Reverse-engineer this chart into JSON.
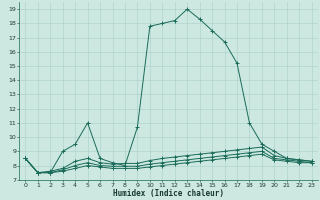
{
  "xlabel": "Humidex (Indice chaleur)",
  "xlim": [
    -0.5,
    23.5
  ],
  "ylim": [
    7,
    19.5
  ],
  "yticks": [
    7,
    8,
    9,
    10,
    11,
    12,
    13,
    14,
    15,
    16,
    17,
    18,
    19
  ],
  "xticks": [
    0,
    1,
    2,
    3,
    4,
    5,
    6,
    7,
    8,
    9,
    10,
    11,
    12,
    13,
    14,
    15,
    16,
    17,
    18,
    19,
    20,
    21,
    22,
    23
  ],
  "bg_color": "#cce8e0",
  "grid_color": "#aacfc8",
  "line_color": "#1a6b5a",
  "series": [
    {
      "x": [
        0,
        1,
        2,
        3,
        4,
        5,
        6,
        7,
        8,
        9,
        10,
        11,
        12,
        13,
        14,
        15,
        16,
        17,
        18,
        19,
        20,
        21,
        22,
        23
      ],
      "y": [
        8.5,
        7.5,
        7.5,
        9.0,
        9.5,
        11.0,
        8.5,
        8.2,
        8.0,
        10.7,
        17.8,
        18.0,
        18.2,
        19.0,
        18.3,
        17.5,
        16.7,
        15.2,
        11.0,
        9.5,
        9.0,
        8.5,
        8.4,
        8.3
      ]
    },
    {
      "x": [
        0,
        1,
        2,
        3,
        4,
        5,
        6,
        7,
        8,
        9,
        10,
        11,
        12,
        13,
        14,
        15,
        16,
        17,
        18,
        19,
        20,
        21,
        22,
        23
      ],
      "y": [
        8.5,
        7.5,
        7.6,
        7.8,
        8.3,
        8.5,
        8.2,
        8.1,
        8.15,
        8.15,
        8.35,
        8.5,
        8.6,
        8.7,
        8.8,
        8.9,
        9.0,
        9.1,
        9.2,
        9.3,
        8.7,
        8.5,
        8.4,
        8.3
      ]
    },
    {
      "x": [
        0,
        1,
        2,
        3,
        4,
        5,
        6,
        7,
        8,
        9,
        10,
        11,
        12,
        13,
        14,
        15,
        16,
        17,
        18,
        19,
        20,
        21,
        22,
        23
      ],
      "y": [
        8.5,
        7.5,
        7.5,
        7.7,
        8.0,
        8.2,
        8.0,
        7.95,
        7.95,
        7.95,
        8.1,
        8.2,
        8.3,
        8.4,
        8.5,
        8.6,
        8.7,
        8.8,
        8.9,
        9.0,
        8.5,
        8.4,
        8.3,
        8.2
      ]
    },
    {
      "x": [
        0,
        1,
        2,
        3,
        4,
        5,
        6,
        7,
        8,
        9,
        10,
        11,
        12,
        13,
        14,
        15,
        16,
        17,
        18,
        19,
        20,
        21,
        22,
        23
      ],
      "y": [
        8.5,
        7.5,
        7.5,
        7.6,
        7.8,
        8.0,
        7.9,
        7.8,
        7.8,
        7.8,
        7.9,
        8.0,
        8.1,
        8.2,
        8.3,
        8.4,
        8.5,
        8.6,
        8.7,
        8.8,
        8.4,
        8.3,
        8.2,
        8.2
      ]
    }
  ]
}
